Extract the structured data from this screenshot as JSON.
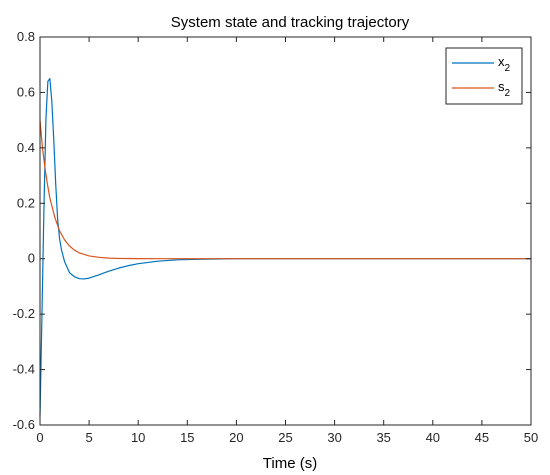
{
  "chart_data": {
    "type": "line",
    "title": "System state and tracking trajectory",
    "xlabel": "Time (s)",
    "ylabel": "",
    "xlim": [
      0,
      50
    ],
    "ylim": [
      -0.6,
      0.8
    ],
    "xticks": [
      0,
      5,
      10,
      15,
      20,
      25,
      30,
      35,
      40,
      45,
      50
    ],
    "yticks": [
      -0.6,
      -0.4,
      -0.2,
      0,
      0.2,
      0.4,
      0.6,
      0.8
    ],
    "grid": false,
    "legend_position": "top-right",
    "series": [
      {
        "name": "x",
        "name_subscript": "2",
        "color": "#0072BD",
        "x": [
          0,
          0.2,
          0.4,
          0.6,
          0.8,
          1.0,
          1.2,
          1.4,
          1.6,
          1.8,
          2.0,
          2.2,
          2.5,
          3.0,
          3.5,
          4.0,
          4.5,
          5.0,
          6.0,
          7.0,
          8.0,
          9.0,
          10.0,
          12.0,
          14.0,
          16.0,
          18.0,
          20.0,
          25.0,
          30.0,
          40.0,
          50.0
        ],
        "y": [
          -0.57,
          -0.2,
          0.18,
          0.5,
          0.64,
          0.65,
          0.57,
          0.43,
          0.27,
          0.14,
          0.07,
          0.03,
          -0.01,
          -0.05,
          -0.065,
          -0.072,
          -0.073,
          -0.07,
          -0.058,
          -0.045,
          -0.034,
          -0.025,
          -0.018,
          -0.009,
          -0.004,
          -0.002,
          -0.001,
          0.0,
          0.0,
          0.0,
          0.0,
          0.0
        ]
      },
      {
        "name": "s",
        "name_subscript": "2",
        "color": "#D95319",
        "x": [
          0,
          0.25,
          0.5,
          0.75,
          1.0,
          1.5,
          2.0,
          2.5,
          3.0,
          3.5,
          4.0,
          5.0,
          6.0,
          7.0,
          8.0,
          10.0,
          12.0,
          15.0,
          20.0,
          30.0,
          40.0,
          50.0
        ],
        "y": [
          0.5,
          0.4,
          0.33,
          0.27,
          0.22,
          0.15,
          0.1,
          0.068,
          0.046,
          0.031,
          0.021,
          0.01,
          0.005,
          0.002,
          0.001,
          0.0002,
          0.0,
          0.0,
          0.0,
          0.0,
          0.0,
          0.0
        ]
      }
    ]
  }
}
